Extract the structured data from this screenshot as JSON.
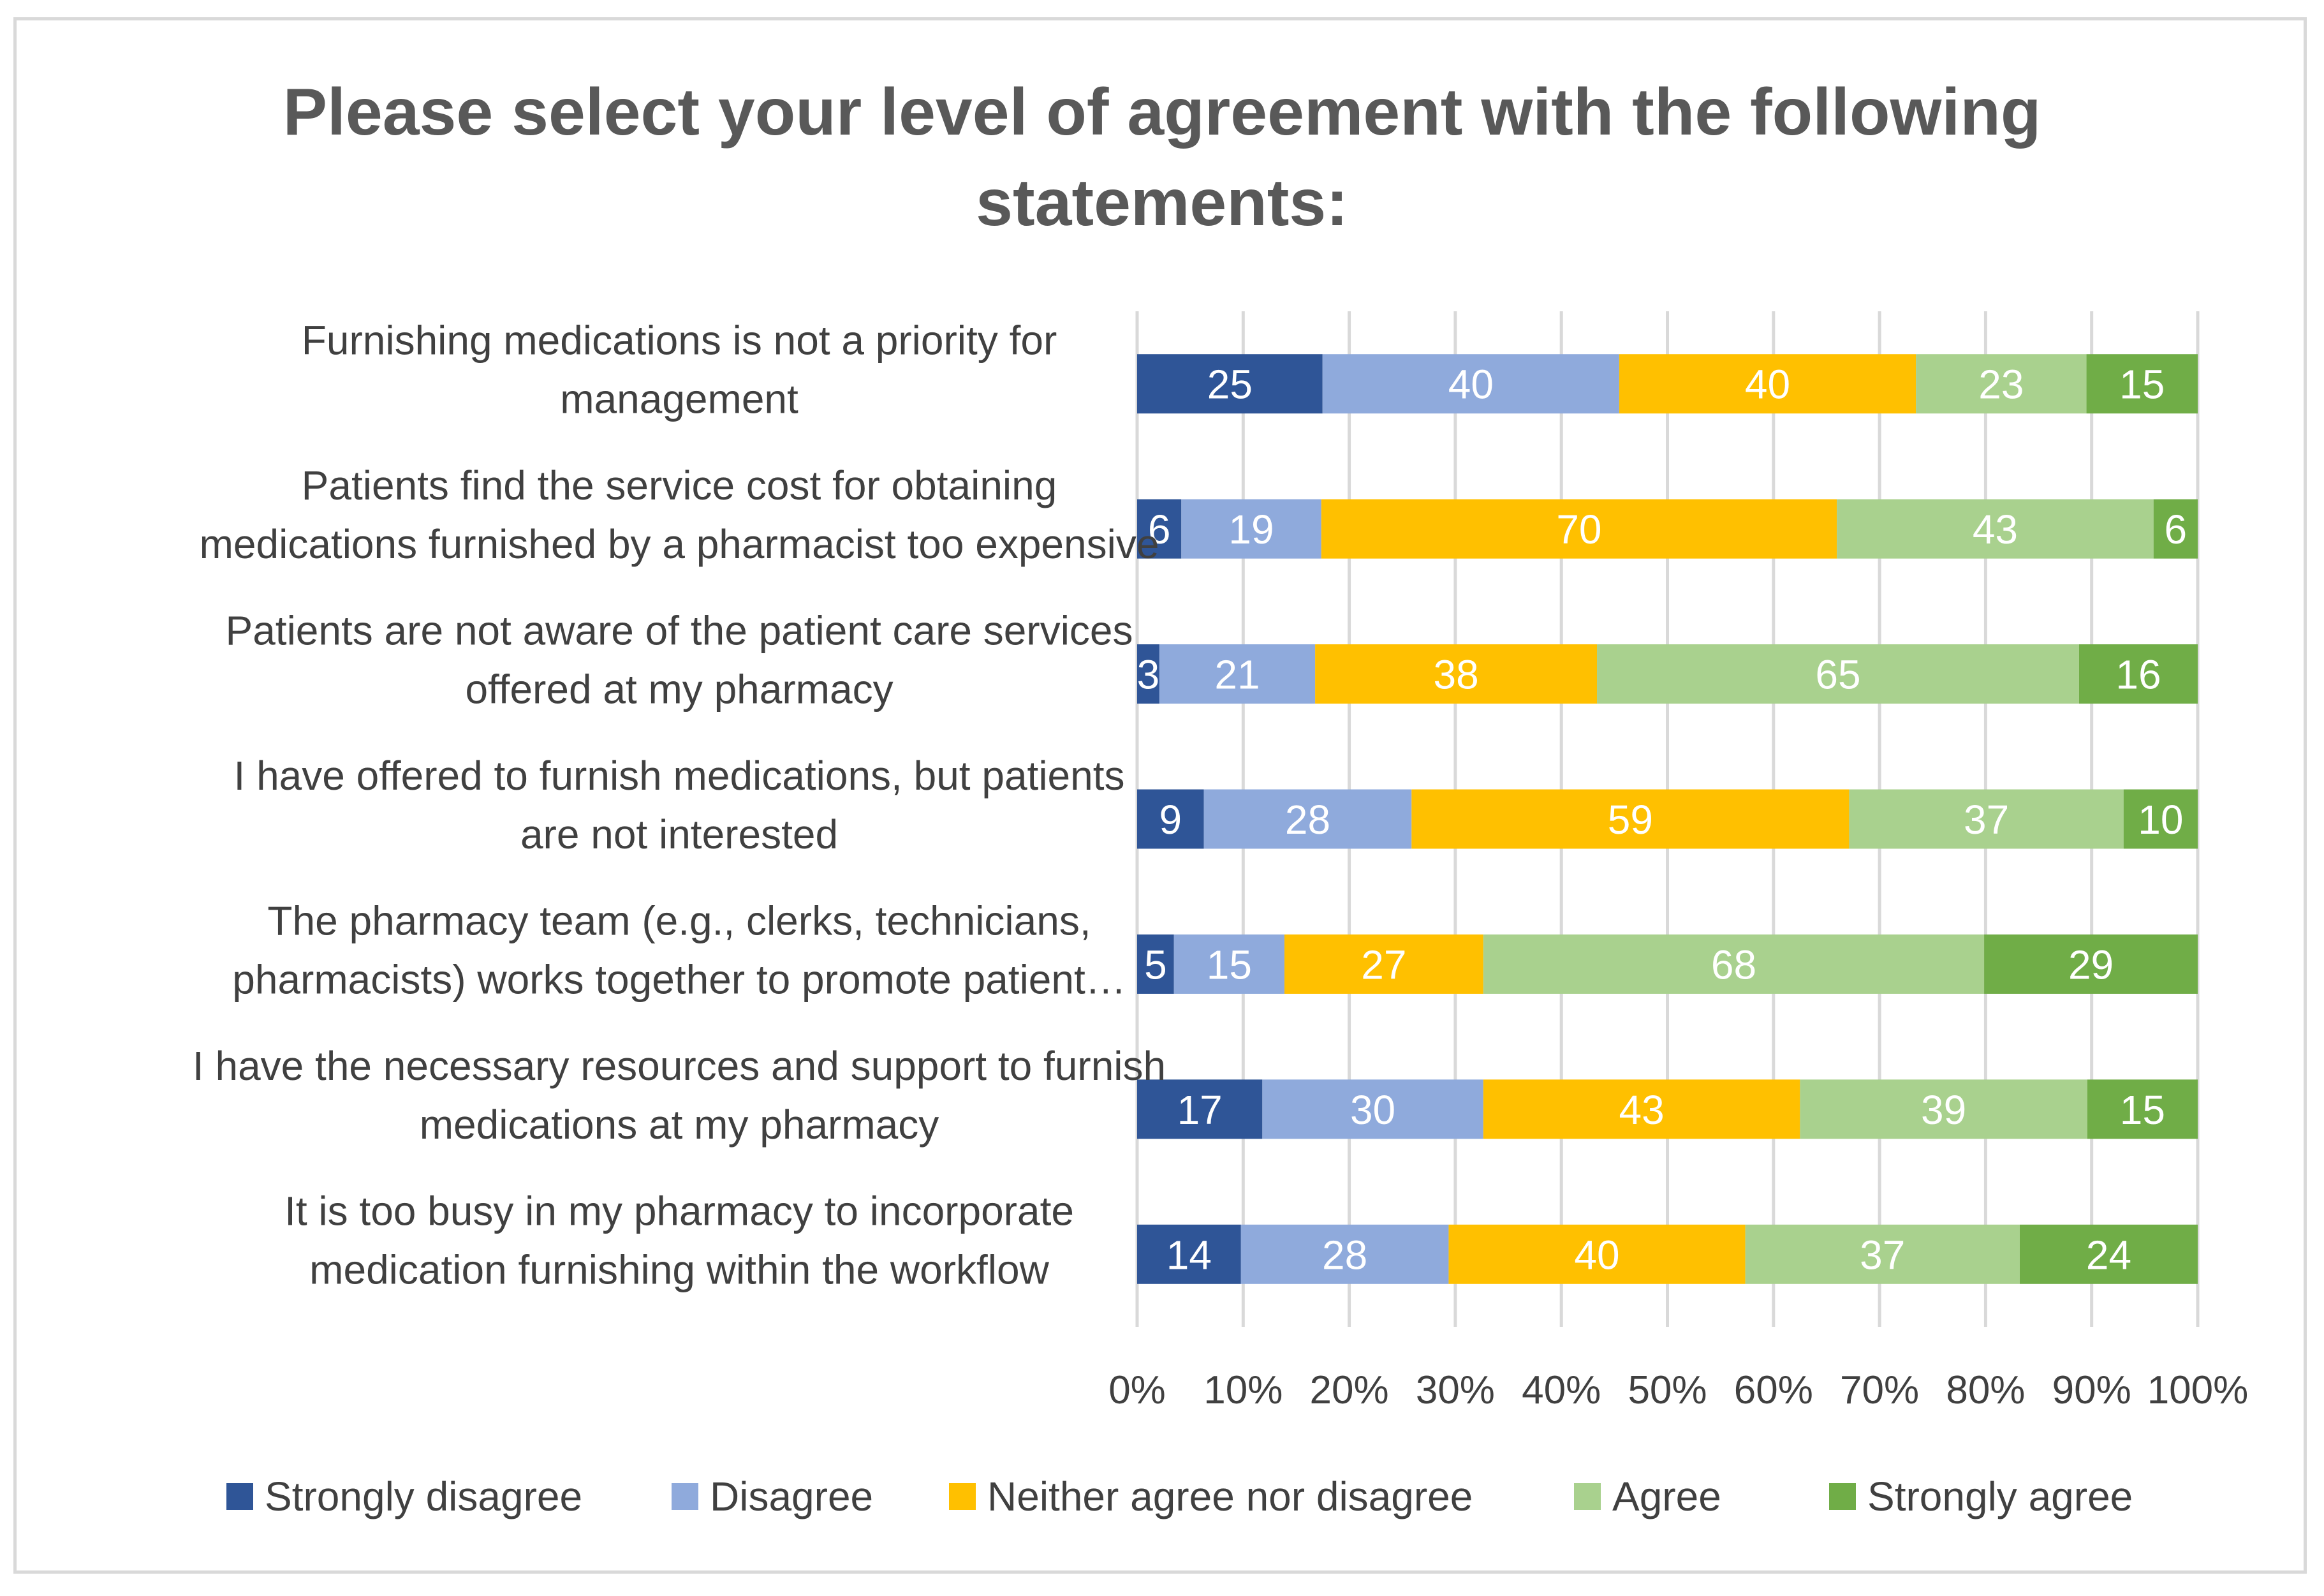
{
  "chart_data": {
    "type": "bar",
    "orientation": "horizontal",
    "stacked": "100%",
    "title": "Please select your level of agreement with the following statements:",
    "title_lines": [
      "Please select your level of agreement with the following",
      "statements:"
    ],
    "categories": [
      [
        "Furnishing medications is not a priority for",
        "management"
      ],
      [
        "Patients find the service cost for obtaining",
        "medications furnished by a pharmacist too expensive"
      ],
      [
        "Patients are not aware of the patient care services",
        "offered at my pharmacy"
      ],
      [
        "I have offered to furnish medications, but patients",
        "are not interested"
      ],
      [
        "The pharmacy team (e.g., clerks, technicians,",
        "pharmacists) works together to promote patient…"
      ],
      [
        "I have the necessary resources and support to furnish",
        "medications at my pharmacy"
      ],
      [
        "It is too busy in my pharmacy to incorporate",
        "medication furnishing within the workflow"
      ]
    ],
    "series": [
      {
        "name": "Strongly disagree",
        "color": "#2f5597",
        "values": [
          25,
          6,
          3,
          9,
          5,
          17,
          14
        ]
      },
      {
        "name": "Disagree",
        "color": "#8faadc",
        "values": [
          40,
          19,
          21,
          28,
          15,
          30,
          28
        ]
      },
      {
        "name": "Neither agree nor disagree",
        "color": "#ffc000",
        "values": [
          40,
          70,
          38,
          59,
          27,
          43,
          40
        ]
      },
      {
        "name": "Agree",
        "color": "#a9d18e",
        "values": [
          23,
          43,
          65,
          37,
          68,
          39,
          37
        ]
      },
      {
        "name": "Strongly agree",
        "color": "#70ad47",
        "values": [
          15,
          6,
          16,
          10,
          29,
          15,
          24
        ]
      }
    ],
    "x_ticks": [
      "0%",
      "10%",
      "20%",
      "30%",
      "40%",
      "50%",
      "60%",
      "70%",
      "80%",
      "90%",
      "100%"
    ],
    "xlim": [
      0,
      100
    ],
    "grid": true,
    "legend_position": "bottom",
    "xlabel": "",
    "ylabel": ""
  }
}
